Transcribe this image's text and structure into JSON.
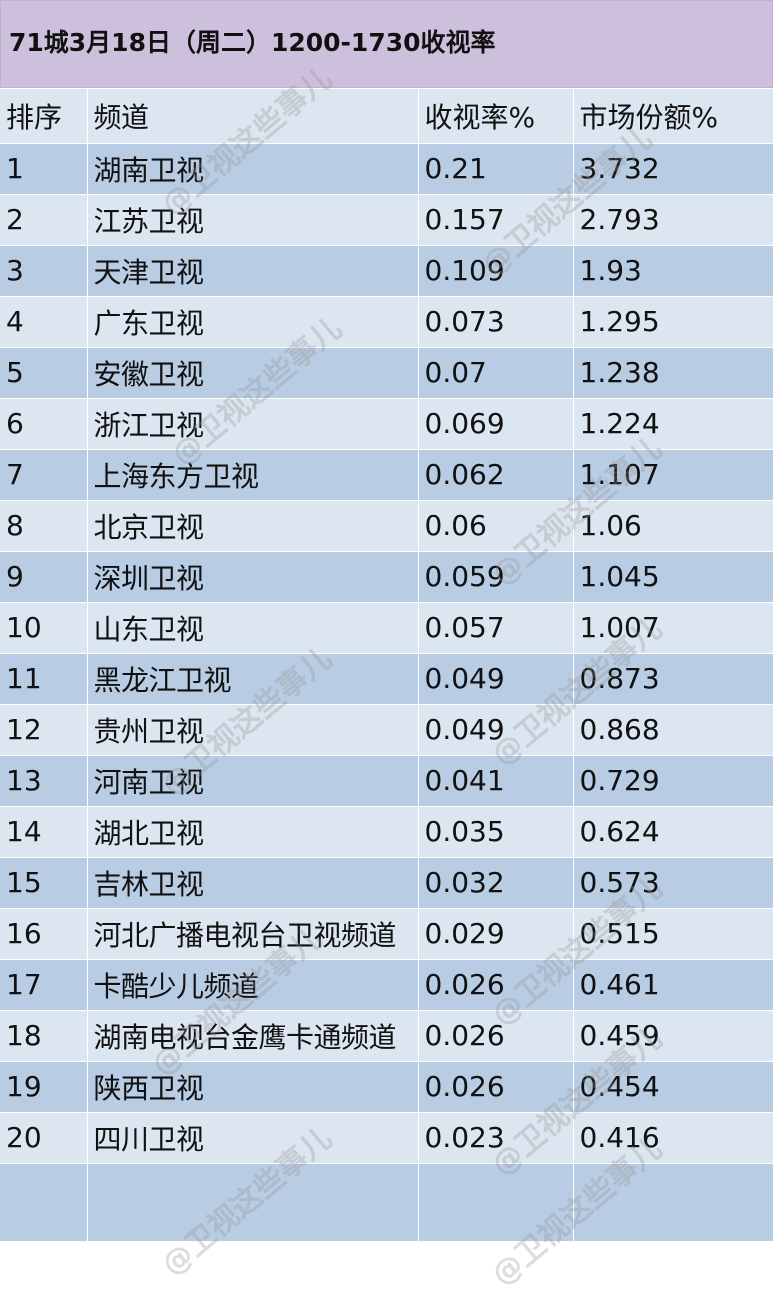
{
  "title": "71城3月18日（周二）1200-1730收视率",
  "headers": [
    "排序",
    "频道",
    "收视率%",
    "市场份额%"
  ],
  "rows": [
    [
      "1",
      "湖南卫视",
      "0.21",
      "3.732"
    ],
    [
      "2",
      "江苏卫视",
      "0.157",
      "2.793"
    ],
    [
      "3",
      "天津卫视",
      "0.109",
      "1.93"
    ],
    [
      "4",
      "广东卫视",
      "0.073",
      "1.295"
    ],
    [
      "5",
      "安徽卫视",
      "0.07",
      "1.238"
    ],
    [
      "6",
      "浙江卫视",
      "0.069",
      "1.224"
    ],
    [
      "7",
      "上海东方卫视",
      "0.062",
      "1.107"
    ],
    [
      "8",
      "北京卫视",
      "0.06",
      "1.06"
    ],
    [
      "9",
      "深圳卫视",
      "0.059",
      "1.045"
    ],
    [
      "10",
      "山东卫视",
      "0.057",
      "1.007"
    ],
    [
      "11",
      "黑龙江卫视",
      "0.049",
      "0.873"
    ],
    [
      "12",
      "贵州卫视",
      "0.049",
      "0.868"
    ],
    [
      "13",
      "河南卫视",
      "0.041",
      "0.729"
    ],
    [
      "14",
      "湖北卫视",
      "0.035",
      "0.624"
    ],
    [
      "15",
      "吉林卫视",
      "0.032",
      "0.573"
    ],
    [
      "16",
      "河北广播电视台卫视频道",
      "0.029",
      "0.515"
    ],
    [
      "17",
      "卡酷少儿频道",
      "0.026",
      "0.461"
    ],
    [
      "18",
      "湖南电视台金鹰卡通频道",
      "0.026",
      "0.459"
    ],
    [
      "19",
      "陕西卫视",
      "0.026",
      "0.454"
    ],
    [
      "20",
      "四川卫视",
      "0.023",
      "0.416"
    ]
  ],
  "watermark": "@卫视这些事儿",
  "colors": {
    "title_bg": "#cdc0dc",
    "row_dark": "#b8cce4",
    "row_light": "#dce6f1"
  }
}
